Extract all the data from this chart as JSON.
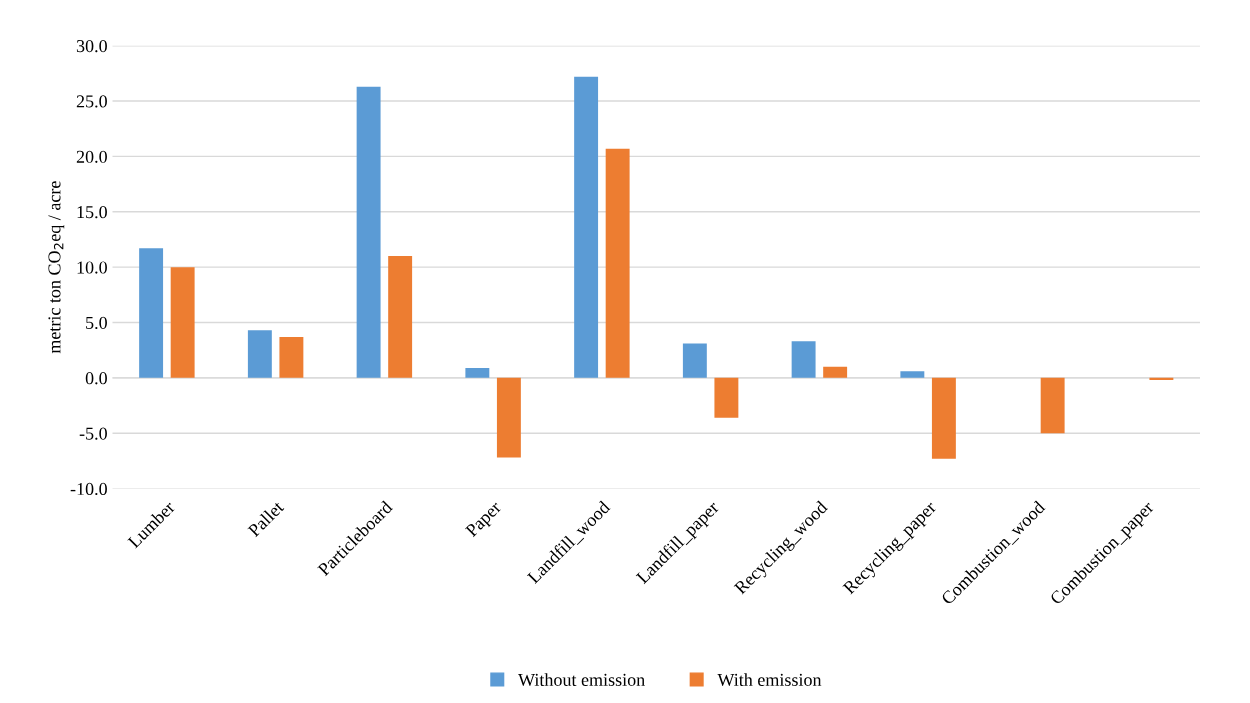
{
  "chart_data": {
    "type": "bar",
    "ylabel": "metric ton CO$_{2}$eq / acre",
    "categories": [
      "Lumber",
      "Pallet",
      "Particleboard",
      "Paper",
      "Landfill_wood",
      "Landfill_paper",
      "Recycling_wood",
      "Recycling_paper",
      "Combustion_wood",
      "Combustion_paper"
    ],
    "series": [
      {
        "name": "Without emission",
        "color": "#5b9bd5",
        "values": [
          11.7,
          4.3,
          26.3,
          0.9,
          27.2,
          3.1,
          3.3,
          0.6,
          0,
          0
        ]
      },
      {
        "name": "With emission",
        "color": "#ed7d31",
        "values": [
          10.0,
          3.7,
          11.0,
          -7.2,
          20.7,
          -3.6,
          1.0,
          -7.3,
          -5.0,
          -0.2
        ]
      }
    ],
    "ylim": [
      -10,
      30
    ],
    "yticks": [
      {
        "value": -10,
        "label": "-10.0"
      },
      {
        "value": -5,
        "label": "-5.0"
      },
      {
        "value": 0,
        "label": "0.0"
      },
      {
        "value": 5,
        "label": "5.0"
      },
      {
        "value": 10,
        "label": "10.0"
      },
      {
        "value": 15,
        "label": "15.0"
      },
      {
        "value": 20,
        "label": "20.0"
      },
      {
        "value": 25,
        "label": "25.0"
      },
      {
        "value": 30,
        "label": "30.0"
      }
    ],
    "grid": "y",
    "legend": "bottom"
  }
}
